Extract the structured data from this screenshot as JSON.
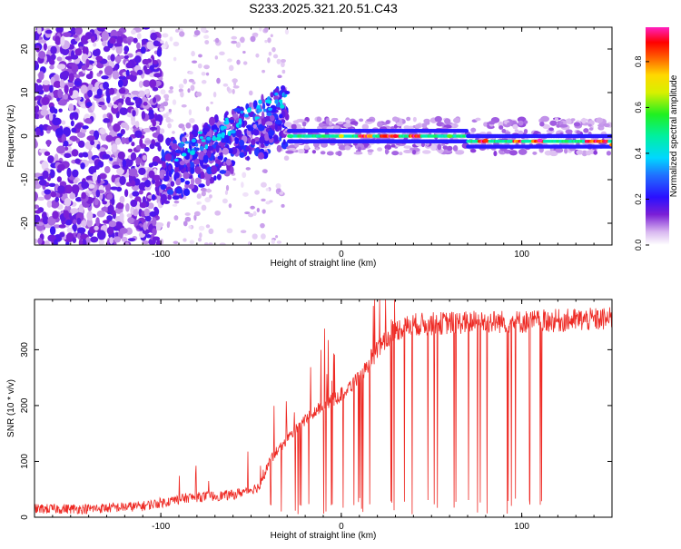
{
  "figure_title": "S233.2025.321.20.51.C43",
  "chart_data": [
    {
      "type": "heatmap",
      "xlabel": "Height of straight line (km)",
      "ylabel": "Frequency (Hz)",
      "xlim": [
        -170,
        150
      ],
      "ylim": [
        -25,
        25
      ],
      "xticks": [
        -100,
        0,
        100
      ],
      "yticks": [
        -20,
        -10,
        0,
        10,
        20
      ],
      "colorbar": {
        "label": "Normalized spectral amplitude",
        "ticks": [
          "0.0",
          "0.2",
          "0.4",
          "0.6",
          "0.8"
        ],
        "range": [
          0,
          0.95
        ]
      },
      "ridge": {
        "description": "narrow band near 0 Hz from ~-30 km to 150 km; diagonal branches from ~-90 km to -30 km",
        "points": [
          {
            "x": -100,
            "f": -6,
            "amp": 0.15
          },
          {
            "x": -80,
            "f": -3,
            "amp": 0.25
          },
          {
            "x": -60,
            "f": 1,
            "amp": 0.35
          },
          {
            "x": -40,
            "f": 5,
            "amp": 0.3
          },
          {
            "x": -30,
            "f": 10,
            "amp": 0.2
          },
          {
            "x": -28,
            "f": 0,
            "amp": 0.5
          },
          {
            "x": 0,
            "f": 0,
            "amp": 0.7
          },
          {
            "x": 30,
            "f": 0,
            "amp": 0.9
          },
          {
            "x": 60,
            "f": 0,
            "amp": 0.6
          },
          {
            "x": 80,
            "f": -1,
            "amp": 0.85
          },
          {
            "x": 110,
            "f": -1,
            "amp": 0.95
          },
          {
            "x": 150,
            "f": -2,
            "amp": 0.8
          }
        ]
      }
    },
    {
      "type": "line",
      "xlabel": "Height of straight line (km)",
      "ylabel": "SNR (10 * v/v)",
      "xlim": [
        -170,
        150
      ],
      "ylim": [
        0,
        390
      ],
      "xticks": [
        -100,
        0,
        100
      ],
      "yticks": [
        0,
        100,
        200,
        300
      ],
      "series": [
        {
          "name": "SNR",
          "color": "#ee2a24",
          "trend": [
            {
              "x": -170,
              "y": 15
            },
            {
              "x": -140,
              "y": 15
            },
            {
              "x": -110,
              "y": 20
            },
            {
              "x": -85,
              "y": 35
            },
            {
              "x": -60,
              "y": 40
            },
            {
              "x": -45,
              "y": 55
            },
            {
              "x": -40,
              "y": 100
            },
            {
              "x": -30,
              "y": 140
            },
            {
              "x": -20,
              "y": 175
            },
            {
              "x": -10,
              "y": 200
            },
            {
              "x": 0,
              "y": 220
            },
            {
              "x": 10,
              "y": 250
            },
            {
              "x": 20,
              "y": 300
            },
            {
              "x": 30,
              "y": 335
            },
            {
              "x": 40,
              "y": 345
            },
            {
              "x": 60,
              "y": 348
            },
            {
              "x": 80,
              "y": 350
            },
            {
              "x": 100,
              "y": 350
            },
            {
              "x": 120,
              "y": 352
            },
            {
              "x": 150,
              "y": 355
            }
          ],
          "dropout_range": [
            0,
            112
          ]
        }
      ]
    }
  ]
}
